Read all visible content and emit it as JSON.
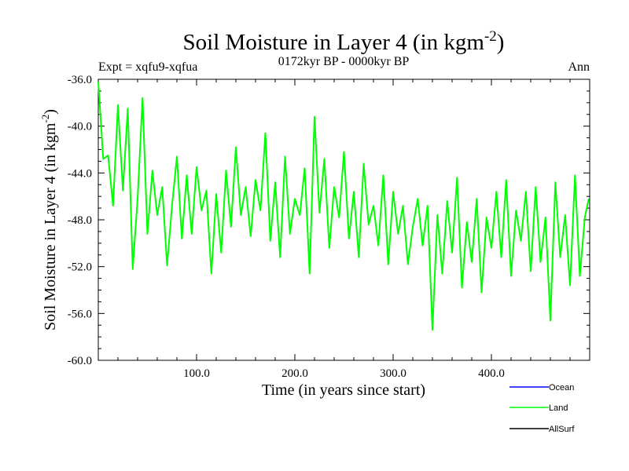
{
  "chart_data": {
    "type": "line",
    "title": "Soil Moisture in Layer 4 (in kgm",
    "title_sup": "-2",
    "title_end": ")",
    "subtitle": "0172kyr BP - 0000kyr BP",
    "left_label": "Expt = xqfu9-xqfua",
    "right_label": "Ann",
    "xlabel": "Time (in years since start)",
    "ylabel": "Soil Moisture in Layer 4 (in kgm",
    "ylabel_sup": "-2",
    "ylabel_end": ")",
    "xlim": [
      0,
      500
    ],
    "ylim": [
      -60,
      -36
    ],
    "x_ticks": [
      100,
      200,
      300,
      400
    ],
    "x_tick_labels": [
      "100.0",
      "200.0",
      "300.0",
      "400.0"
    ],
    "y_ticks": [
      -60,
      -56,
      -52,
      -48,
      -44,
      -40,
      -36
    ],
    "y_tick_labels": [
      "-60.0",
      "-56.0",
      "-52.0",
      "-48.0",
      "-44.0",
      "-40.0",
      "-36.0"
    ],
    "legend": [
      {
        "name": "Ocean",
        "color": "#0000ff"
      },
      {
        "name": "Land",
        "color": "#00ff00"
      },
      {
        "name": "AllSurf",
        "color": "#000000"
      }
    ],
    "series": [
      {
        "name": "Land",
        "color": "#00ff00",
        "x": [
          0,
          5,
          10,
          15,
          20,
          25,
          30,
          35,
          40,
          45,
          50,
          55,
          60,
          65,
          70,
          75,
          80,
          85,
          90,
          95,
          100,
          105,
          110,
          115,
          120,
          125,
          130,
          135,
          140,
          145,
          150,
          155,
          160,
          165,
          170,
          175,
          180,
          185,
          190,
          195,
          200,
          205,
          210,
          215,
          220,
          225,
          230,
          235,
          240,
          245,
          250,
          255,
          260,
          265,
          270,
          275,
          280,
          285,
          290,
          295,
          300,
          305,
          310,
          315,
          320,
          325,
          330,
          335,
          340,
          345,
          350,
          355,
          360,
          365,
          370,
          375,
          380,
          385,
          390,
          395,
          400,
          405,
          410,
          415,
          420,
          425,
          430,
          435,
          440,
          445,
          450,
          455,
          460,
          465,
          470,
          475,
          480,
          485,
          490,
          495,
          499
        ],
        "values": [
          -36.2,
          -42.8,
          -42.5,
          -46.8,
          -38.2,
          -45.5,
          -38.5,
          -52.2,
          -46.2,
          -37.6,
          -49.2,
          -43.8,
          -47.6,
          -45.2,
          -51.9,
          -46.8,
          -42.6,
          -49.6,
          -44.2,
          -49.2,
          -43.5,
          -47.2,
          -45.5,
          -52.6,
          -45.8,
          -50.8,
          -43.8,
          -48.6,
          -41.8,
          -47.6,
          -45.2,
          -49.4,
          -44.6,
          -47.2,
          -40.6,
          -49.8,
          -44.8,
          -51.2,
          -42.6,
          -49.2,
          -46.2,
          -47.6,
          -43.6,
          -52.6,
          -39.2,
          -47.4,
          -42.8,
          -50.4,
          -45.2,
          -47.8,
          -42.2,
          -49.6,
          -45.6,
          -51.2,
          -43.2,
          -48.4,
          -46.8,
          -50.2,
          -44.2,
          -51.8,
          -45.6,
          -49.2,
          -46.8,
          -51.8,
          -48.6,
          -46.2,
          -50.2,
          -46.8,
          -57.4,
          -47.6,
          -52.6,
          -46.4,
          -50.8,
          -44.4,
          -53.8,
          -48.2,
          -51.6,
          -46.2,
          -54.2,
          -47.8,
          -50.4,
          -45.6,
          -51.2,
          -44.6,
          -52.8,
          -47.2,
          -49.8,
          -45.6,
          -52.4,
          -45.2,
          -51.6,
          -47.8,
          -56.6,
          -44.8,
          -51.2,
          -47.6,
          -53.6,
          -44.2,
          -52.8,
          -47.8,
          -46.2
        ]
      }
    ]
  }
}
